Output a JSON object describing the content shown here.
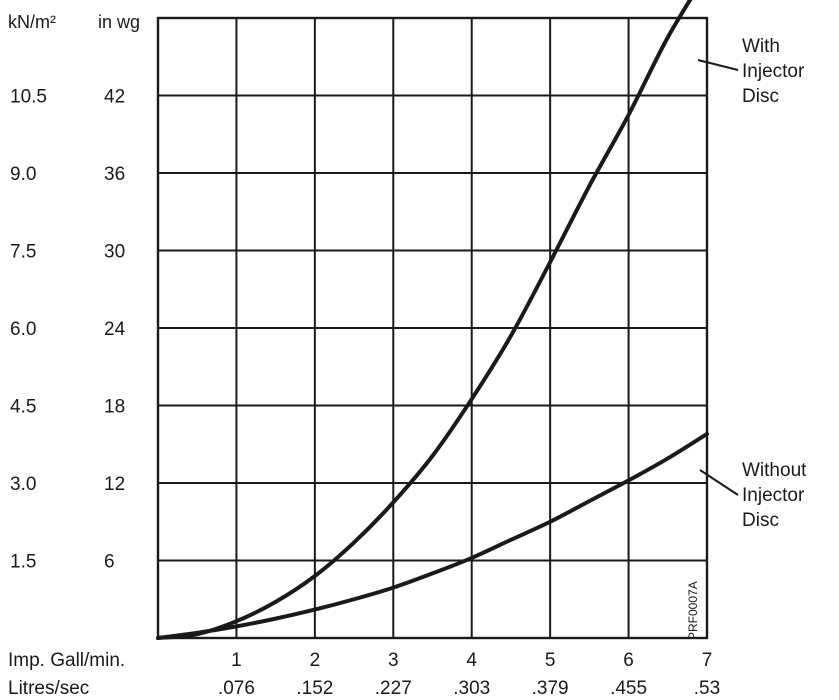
{
  "chart_data": {
    "type": "line",
    "title": "",
    "x_axis": {
      "label": "Imp. Gall/min.",
      "secondary_label": "Litres/sec",
      "ticks": [
        "1",
        "2",
        "3",
        "4",
        "5",
        "6",
        "7"
      ],
      "secondary_ticks": [
        ".076",
        ".152",
        ".227",
        ".303",
        ".379",
        ".455",
        ".53"
      ],
      "range": [
        0,
        7
      ]
    },
    "y_axis": {
      "label": "in wg",
      "secondary_label": "kN/m²",
      "ticks": [
        "6",
        "12",
        "18",
        "24",
        "30",
        "36",
        "42"
      ],
      "secondary_ticks": [
        "1.5",
        "3.0",
        "4.5",
        "6.0",
        "7.5",
        "9.0",
        "10.5"
      ],
      "range": [
        0,
        48
      ]
    },
    "grid": true,
    "series": [
      {
        "name": "With Injector Disc",
        "label_lines": [
          "With",
          "Injector",
          "Disc"
        ],
        "x": [
          0,
          0.5,
          1,
          1.5,
          2,
          2.5,
          3,
          3.5,
          4,
          4.5,
          5,
          5.5,
          6,
          6.5,
          7
        ],
        "y": [
          0,
          0.3,
          1.3,
          2.8,
          4.8,
          7.4,
          10.5,
          14.1,
          18.5,
          23.4,
          29.1,
          35.0,
          40.5,
          46.5,
          51.5
        ]
      },
      {
        "name": "Without Injector Disc",
        "label_lines": [
          "Without",
          "Injector",
          "Disc"
        ],
        "x": [
          0,
          0.5,
          1,
          1.5,
          2,
          2.5,
          3,
          3.5,
          4,
          4.5,
          5,
          5.5,
          6,
          6.5,
          7
        ],
        "y": [
          0,
          0.4,
          0.9,
          1.5,
          2.2,
          3.0,
          3.9,
          5.0,
          6.2,
          7.6,
          9.0,
          10.6,
          12.2,
          13.9,
          15.8
        ]
      }
    ],
    "annotations": [
      "PRF0007A"
    ]
  }
}
